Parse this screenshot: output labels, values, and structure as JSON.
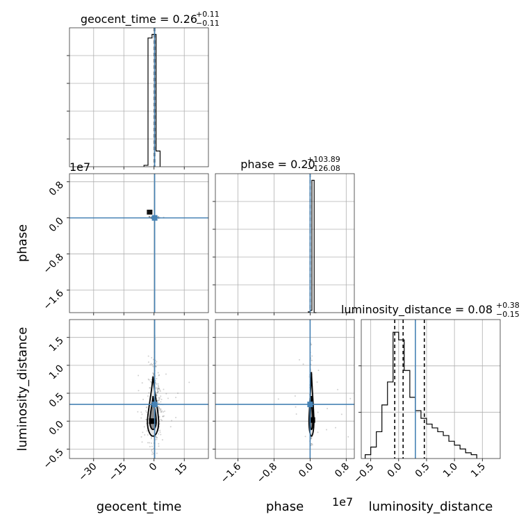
{
  "chart_data": {
    "type": "corner",
    "parameters": [
      "geocent_time",
      "phase",
      "luminosity_distance"
    ],
    "truth_color": "#4682b4",
    "grid": true,
    "titles": [
      {
        "param": "geocent_time",
        "prefix": "geocent_time = 0.26",
        "sup": "+0.11",
        "sub": "−0.11"
      },
      {
        "param": "phase",
        "prefix": "phase = 0.20",
        "sup": "+103.89",
        "sub": "−126.08"
      },
      {
        "param": "luminosity_distance",
        "prefix": "luminosity_distance = 0.08",
        "sup": "+0.38",
        "sub": "−0.15"
      }
    ],
    "offset_texts": {
      "geocent_time_hist": "1e7",
      "phase_x": "1e7"
    },
    "axes": {
      "geocent_time": {
        "range": [
          -42,
          27
        ],
        "ticks": [
          -30,
          -15,
          0,
          15
        ],
        "tick_labels": [
          "−30",
          "−15",
          "0",
          "15"
        ],
        "truth": 0.3
      },
      "phase": {
        "range": [
          -2.1,
          0.98
        ],
        "ticks": [
          -1.6,
          -0.8,
          0.0,
          0.8
        ],
        "tick_labels": [
          "−1.6",
          "−0.8",
          "0.0",
          "0.8"
        ],
        "truth": 0.0
      },
      "luminosity_distance": {
        "range": [
          -0.67,
          1.82
        ],
        "ticks": [
          -0.5,
          0.0,
          0.5,
          1.0,
          1.5
        ],
        "tick_labels": [
          "−0.5",
          "0.0",
          "0.5",
          "1.0",
          "1.5"
        ],
        "truth": 0.3
      }
    },
    "hist_geocent_time": {
      "edges": [
        -5,
        -3,
        -1,
        1,
        3
      ],
      "counts": [
        2,
        180,
        185,
        22
      ],
      "quantile_lines": [
        0.15,
        0.26,
        0.37
      ]
    },
    "hist_phase": {
      "edges": [
        -0.04,
        0.0,
        0.04,
        0.09,
        0.14
      ],
      "counts": [
        1,
        3,
        170,
        0
      ],
      "quantile_lines": [
        0.0
      ]
    },
    "hist_luminosity_distance": {
      "edges": [
        -0.6,
        -0.5,
        -0.4,
        -0.3,
        -0.2,
        -0.1,
        0.0,
        0.1,
        0.2,
        0.3,
        0.4,
        0.5,
        0.6,
        0.7,
        0.8,
        0.9,
        1.0,
        1.1,
        1.2,
        1.3,
        1.4
      ],
      "counts": [
        0.1,
        0.3,
        0.7,
        1.4,
        2.0,
        3.3,
        3.1,
        2.3,
        1.6,
        1.25,
        1.05,
        0.9,
        0.8,
        0.7,
        0.6,
        0.45,
        0.35,
        0.25,
        0.15,
        0.1
      ],
      "quantile_lines": [
        -0.07,
        0.08,
        0.46
      ]
    },
    "contour_luminosity_distance_vs_geocent_time": {
      "center": [
        -0.5,
        0.08
      ],
      "outer_halfwidth": 2.8,
      "inner_halfwidth": 1.6,
      "outer_y": [
        -0.27,
        0.8
      ],
      "inner_y": [
        -0.15,
        0.45
      ]
    },
    "contour_luminosity_distance_vs_phase": {
      "center": [
        0.03,
        0.08
      ],
      "outer_halfwidth": 0.055,
      "inner_halfwidth": 0.03,
      "outer_y": [
        -0.27,
        0.88
      ],
      "inner_y": [
        -0.15,
        0.45
      ]
    }
  }
}
